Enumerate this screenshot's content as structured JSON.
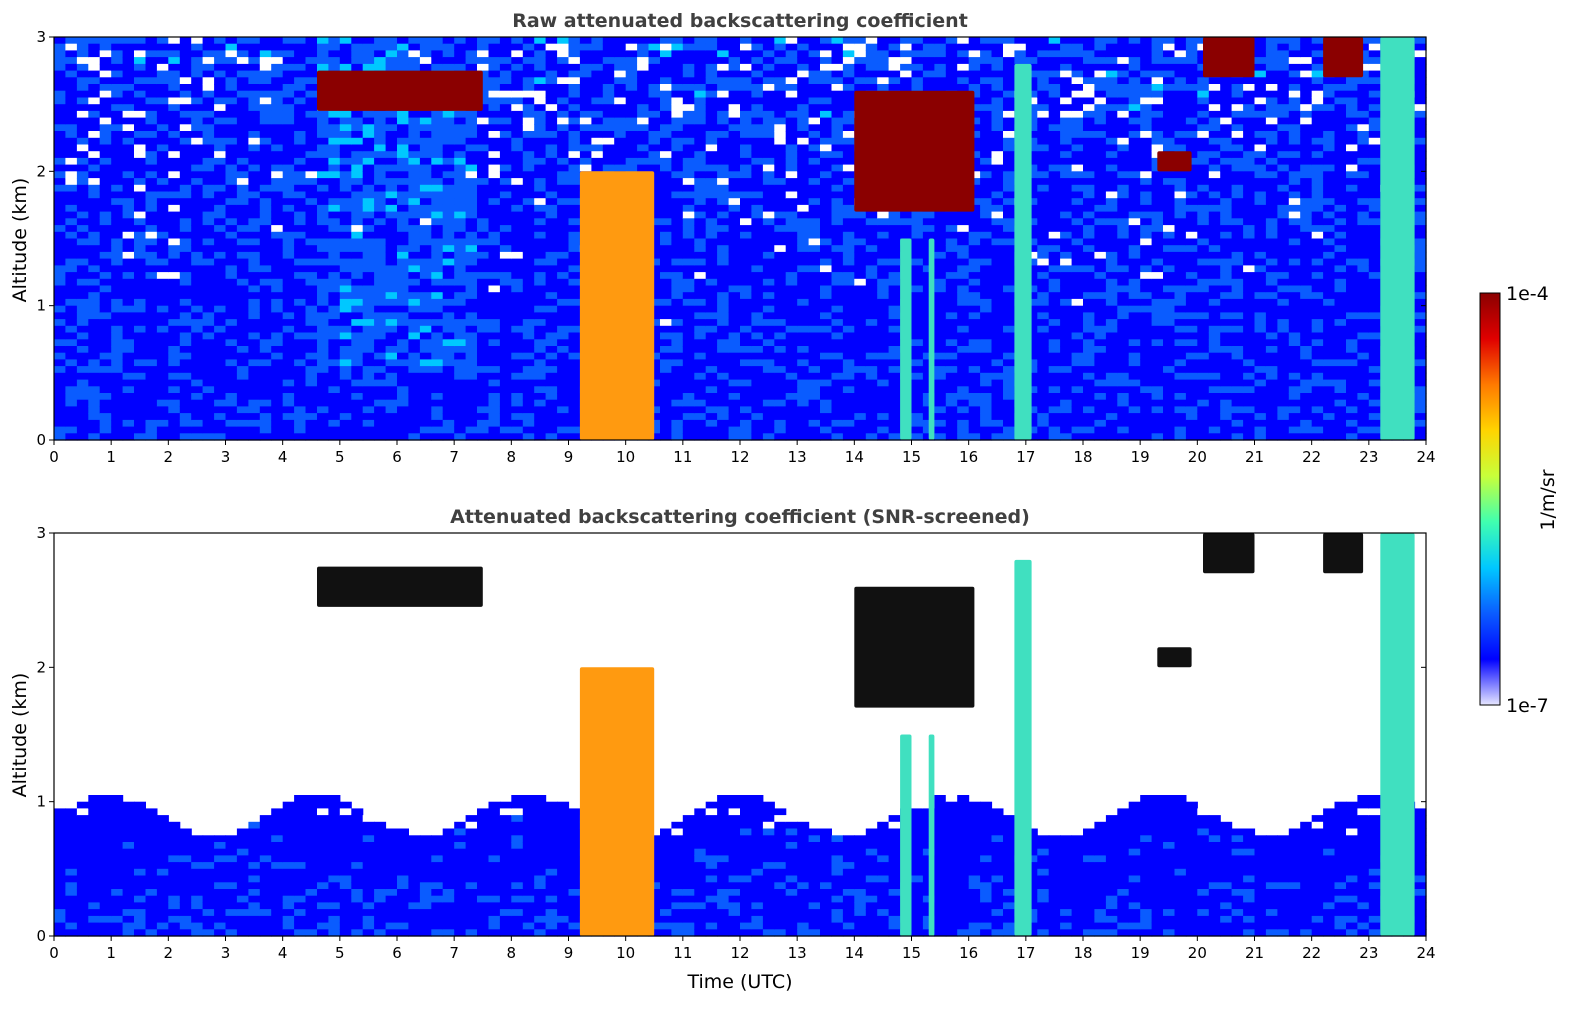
{
  "colors": {
    "title_text": "#404040",
    "axis": "#000000",
    "colormap": [
      "#ffffff",
      "#0000ff",
      "#0a5cff",
      "#00c8ff",
      "#40ffb0",
      "#c8ff3a",
      "#ffd400",
      "#ff7a00",
      "#e00000",
      "#8b0000"
    ],
    "cloud_dark": "#8b0000",
    "screened_dark": "#111111"
  },
  "colorbar": {
    "max_label": "1e-4",
    "min_label": "1e-7",
    "units_label": "1/m/sr",
    "scale": "log"
  },
  "chart_data": [
    {
      "type": "heatmap",
      "title": "Raw attenuated backscattering coefficient",
      "xlabel": "",
      "ylabel": "Altitude (km)",
      "xlim": [
        0,
        24
      ],
      "ylim": [
        0,
        3
      ],
      "xticks": [
        "0",
        "1",
        "2",
        "3",
        "4",
        "5",
        "6",
        "7",
        "8",
        "9",
        "10",
        "11",
        "12",
        "13",
        "14",
        "15",
        "16",
        "17",
        "18",
        "19",
        "20",
        "21",
        "22",
        "23",
        "24"
      ],
      "yticks": [
        "0",
        "1",
        "2",
        "3"
      ],
      "grid": false,
      "noise_level": 0.5,
      "features": [
        {
          "kind": "cloud_layer",
          "t": [
            4.6,
            7.5
          ],
          "alt": [
            2.45,
            2.75
          ]
        },
        {
          "kind": "cloud_layer",
          "t": [
            14.0,
            16.1
          ],
          "alt": [
            1.7,
            2.6
          ]
        },
        {
          "kind": "precip_column",
          "t": [
            9.2,
            10.5
          ],
          "alt": [
            0,
            2.0
          ]
        },
        {
          "kind": "precip_shaft",
          "t": [
            14.8,
            15.0
          ],
          "alt": [
            0,
            1.5
          ]
        },
        {
          "kind": "precip_shaft",
          "t": [
            15.3,
            15.4
          ],
          "alt": [
            0,
            1.5
          ]
        },
        {
          "kind": "precip_shaft",
          "t": [
            16.8,
            17.1
          ],
          "alt": [
            0,
            2.8
          ]
        },
        {
          "kind": "precip_shaft",
          "t": [
            23.2,
            23.8
          ],
          "alt": [
            0,
            3.0
          ]
        },
        {
          "kind": "cloud_patch",
          "t": [
            19.3,
            19.9
          ],
          "alt": [
            2.0,
            2.15
          ]
        },
        {
          "kind": "cloud_patch",
          "t": [
            20.1,
            21.0
          ],
          "alt": [
            2.7,
            3.0
          ]
        },
        {
          "kind": "cloud_patch",
          "t": [
            22.2,
            22.9
          ],
          "alt": [
            2.7,
            3.0
          ]
        }
      ]
    },
    {
      "type": "heatmap",
      "title": "Attenuated backscattering coefficient (SNR-screened)",
      "xlabel": "Time (UTC)",
      "ylabel": "Altitude (km)",
      "xlim": [
        0,
        24
      ],
      "ylim": [
        0,
        3
      ],
      "xticks": [
        "0",
        "1",
        "2",
        "3",
        "4",
        "5",
        "6",
        "7",
        "8",
        "9",
        "10",
        "11",
        "12",
        "13",
        "14",
        "15",
        "16",
        "17",
        "18",
        "19",
        "20",
        "21",
        "22",
        "23",
        "24"
      ],
      "yticks": [
        "0",
        "1",
        "2",
        "3"
      ],
      "grid": false,
      "noise_level": 0.0,
      "features": [
        {
          "kind": "cloud_layer",
          "t": [
            4.6,
            7.5
          ],
          "alt": [
            2.45,
            2.75
          ]
        },
        {
          "kind": "cloud_layer",
          "t": [
            14.0,
            16.1
          ],
          "alt": [
            1.7,
            2.6
          ]
        },
        {
          "kind": "precip_column",
          "t": [
            9.2,
            10.5
          ],
          "alt": [
            0,
            2.0
          ]
        },
        {
          "kind": "precip_shaft",
          "t": [
            14.8,
            15.0
          ],
          "alt": [
            0,
            1.5
          ]
        },
        {
          "kind": "precip_shaft",
          "t": [
            15.3,
            15.4
          ],
          "alt": [
            0,
            1.5
          ]
        },
        {
          "kind": "precip_shaft",
          "t": [
            16.8,
            17.1
          ],
          "alt": [
            0,
            2.8
          ]
        },
        {
          "kind": "precip_shaft",
          "t": [
            23.2,
            23.8
          ],
          "alt": [
            0,
            3.0
          ]
        },
        {
          "kind": "cloud_patch",
          "t": [
            19.3,
            19.9
          ],
          "alt": [
            2.0,
            2.15
          ]
        },
        {
          "kind": "cloud_patch",
          "t": [
            20.1,
            21.0
          ],
          "alt": [
            2.7,
            3.0
          ]
        },
        {
          "kind": "cloud_patch",
          "t": [
            22.2,
            22.9
          ],
          "alt": [
            2.7,
            3.0
          ]
        }
      ]
    }
  ]
}
